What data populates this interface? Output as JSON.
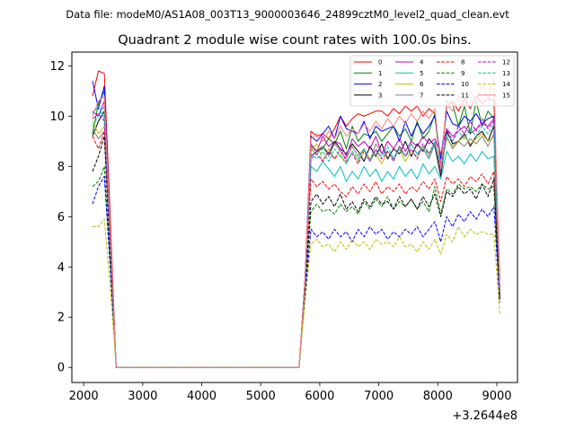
{
  "header": {
    "subtitle": "Data file: modeM0/AS1A08_003T13_9000003646_24899cztM0_level2_quad_clean.evt",
    "title": "Quadrant 2 module wise count rates with 100.0s bins."
  },
  "chart_data": {
    "type": "line",
    "title": "Quadrant 2 module wise count rates with 100.0s bins.",
    "xlabel": "",
    "ylabel": "",
    "x_offset_label": "+3.2644e8",
    "xlim": [
      1800,
      9350
    ],
    "ylim": [
      -0.6,
      12.55
    ],
    "x_ticks": [
      2000,
      3000,
      4000,
      5000,
      6000,
      7000,
      8000,
      9000
    ],
    "x_tick_labels": [
      "2000",
      "3000",
      "4000",
      "5000",
      "6000",
      "7000",
      "8000",
      "9000"
    ],
    "y_ticks": [
      0,
      2,
      4,
      6,
      8,
      10,
      12
    ],
    "y_tick_labels": [
      "0",
      "2",
      "4",
      "6",
      "8",
      "10",
      "12"
    ],
    "grid": false,
    "legend_position": "top-right",
    "x": [
      2150,
      2250,
      2350,
      2450,
      2550,
      2650,
      2750,
      2850,
      2950,
      3050,
      3150,
      3250,
      3350,
      3450,
      3550,
      3650,
      3750,
      3850,
      3950,
      4050,
      4150,
      4250,
      4350,
      4450,
      4550,
      4650,
      4750,
      4850,
      4950,
      5050,
      5150,
      5250,
      5350,
      5450,
      5550,
      5650,
      5750,
      5850,
      5950,
      6050,
      6150,
      6250,
      6350,
      6450,
      6550,
      6650,
      6750,
      6850,
      6950,
      7050,
      7150,
      7250,
      7350,
      7450,
      7550,
      7650,
      7750,
      7850,
      7950,
      8050,
      8150,
      8250,
      8350,
      8450,
      8550,
      8650,
      8750,
      8850,
      8950,
      9050
    ],
    "series": [
      {
        "name": "0",
        "color": "#ff0000",
        "dashed": false,
        "values": [
          10.8,
          11.8,
          11.7,
          6.0,
          0.0,
          0,
          0,
          0,
          0,
          0,
          0,
          0,
          0,
          0,
          0,
          0,
          0,
          0,
          0,
          0,
          0,
          0,
          0,
          0,
          0,
          0,
          0,
          0,
          0,
          0,
          0,
          0,
          0,
          0,
          0,
          0.0,
          3.5,
          9.4,
          9.2,
          9.3,
          9.1,
          9.5,
          10.0,
          9.6,
          9.9,
          10.1,
          10.0,
          10.1,
          10.2,
          10.2,
          10.0,
          10.3,
          10.1,
          10.4,
          10.2,
          10.4,
          10.0,
          10.3,
          10.1,
          8.0,
          10.4,
          10.6,
          10.2,
          10.7,
          10.3,
          10.8,
          10.5,
          10.7,
          10.6,
          3.5
        ]
      },
      {
        "name": "1",
        "color": "#008000",
        "dashed": false,
        "values": [
          9.3,
          10.5,
          11.0,
          5.5,
          0.0,
          0,
          0,
          0,
          0,
          0,
          0,
          0,
          0,
          0,
          0,
          0,
          0,
          0,
          0,
          0,
          0,
          0,
          0,
          0,
          0,
          0,
          0,
          0,
          0,
          0,
          0,
          0,
          0,
          0,
          0,
          0.0,
          3.5,
          8.8,
          8.6,
          8.7,
          9.1,
          8.9,
          9.4,
          8.7,
          9.6,
          9.0,
          9.3,
          9.2,
          9.4,
          9.0,
          9.3,
          9.6,
          9.2,
          9.5,
          9.0,
          9.8,
          9.1,
          9.4,
          10.1,
          7.8,
          10.6,
          10.5,
          9.6,
          10.4,
          9.3,
          10.6,
          9.6,
          10.2,
          9.9,
          3.2
        ]
      },
      {
        "name": "2",
        "color": "#0000ff",
        "dashed": false,
        "values": [
          11.4,
          10.3,
          11.2,
          5.4,
          0.0,
          0,
          0,
          0,
          0,
          0,
          0,
          0,
          0,
          0,
          0,
          0,
          0,
          0,
          0,
          0,
          0,
          0,
          0,
          0,
          0,
          0,
          0,
          0,
          0,
          0,
          0,
          0,
          0,
          0,
          0,
          0.0,
          3.5,
          9.2,
          9.0,
          9.3,
          9.6,
          9.1,
          10.0,
          9.5,
          9.4,
          9.3,
          9.8,
          9.1,
          9.6,
          9.4,
          9.5,
          9.6,
          9.0,
          9.8,
          9.2,
          9.7,
          9.3,
          9.6,
          10.0,
          8.3,
          10.2,
          9.7,
          9.6,
          10.0,
          9.8,
          10.1,
          9.7,
          9.9,
          10.0,
          3.0
        ]
      },
      {
        "name": "3",
        "color": "#000000",
        "dashed": false,
        "values": [
          9.2,
          9.8,
          10.2,
          5.0,
          0.0,
          0,
          0,
          0,
          0,
          0,
          0,
          0,
          0,
          0,
          0,
          0,
          0,
          0,
          0,
          0,
          0,
          0,
          0,
          0,
          0,
          0,
          0,
          0,
          0,
          0,
          0,
          0,
          0,
          0,
          0,
          0.0,
          3.4,
          8.4,
          8.6,
          8.8,
          8.5,
          9.0,
          8.7,
          8.5,
          8.9,
          8.6,
          8.2,
          8.8,
          8.4,
          8.9,
          8.3,
          8.7,
          8.5,
          9.0,
          8.4,
          8.9,
          8.6,
          9.1,
          8.8,
          7.6,
          9.4,
          8.9,
          9.0,
          9.3,
          8.8,
          9.2,
          9.4,
          9.0,
          9.6,
          3.0
        ]
      },
      {
        "name": "4",
        "color": "#bf00bf",
        "dashed": false,
        "values": [
          10.2,
          10.0,
          10.6,
          5.2,
          0.0,
          0,
          0,
          0,
          0,
          0,
          0,
          0,
          0,
          0,
          0,
          0,
          0,
          0,
          0,
          0,
          0,
          0,
          0,
          0,
          0,
          0,
          0,
          0,
          0,
          0,
          0,
          0,
          0,
          0,
          0,
          0.0,
          3.4,
          8.9,
          8.6,
          9.2,
          8.8,
          9.0,
          8.9,
          8.4,
          9.1,
          8.8,
          9.0,
          8.7,
          9.2,
          8.5,
          9.0,
          8.7,
          9.1,
          8.6,
          9.0,
          8.8,
          9.2,
          8.9,
          9.1,
          8.5,
          9.5,
          9.2,
          9.4,
          9.6,
          9.3,
          9.5,
          9.7,
          9.6,
          9.9,
          3.0
        ]
      },
      {
        "name": "5",
        "color": "#00bfbf",
        "dashed": false,
        "values": [
          10.1,
          10.4,
          9.9,
          5.1,
          0.0,
          0,
          0,
          0,
          0,
          0,
          0,
          0,
          0,
          0,
          0,
          0,
          0,
          0,
          0,
          0,
          0,
          0,
          0,
          0,
          0,
          0,
          0,
          0,
          0,
          0,
          0,
          0,
          0,
          0,
          0,
          0.0,
          3.3,
          8.0,
          7.8,
          8.2,
          7.9,
          7.6,
          8.0,
          7.4,
          7.8,
          7.5,
          8.0,
          7.6,
          7.9,
          7.4,
          7.8,
          7.5,
          8.0,
          7.6,
          7.9,
          7.5,
          8.1,
          7.7,
          8.0,
          7.5,
          8.6,
          8.2,
          8.4,
          8.1,
          8.5,
          8.2,
          8.6,
          8.3,
          8.4,
          3.0
        ]
      },
      {
        "name": "6",
        "color": "#bfbf00",
        "dashed": false,
        "values": [
          9.8,
          9.3,
          9.6,
          4.8,
          0.0,
          0,
          0,
          0,
          0,
          0,
          0,
          0,
          0,
          0,
          0,
          0,
          0,
          0,
          0,
          0,
          0,
          0,
          0,
          0,
          0,
          0,
          0,
          0,
          0,
          0,
          0,
          0,
          0,
          0,
          0,
          0.0,
          3.3,
          8.6,
          8.9,
          8.2,
          8.7,
          8.3,
          8.5,
          8.1,
          8.6,
          8.2,
          8.7,
          8.3,
          8.5,
          8.1,
          8.6,
          8.3,
          8.7,
          8.2,
          8.6,
          8.4,
          8.8,
          8.5,
          8.9,
          7.9,
          9.1,
          8.8,
          9.0,
          9.2,
          8.9,
          9.1,
          9.3,
          9.0,
          9.2,
          2.9
        ]
      },
      {
        "name": "7",
        "color": "#808080",
        "dashed": false,
        "values": [
          9.5,
          9.1,
          9.4,
          4.9,
          0.0,
          0,
          0,
          0,
          0,
          0,
          0,
          0,
          0,
          0,
          0,
          0,
          0,
          0,
          0,
          0,
          0,
          0,
          0,
          0,
          0,
          0,
          0,
          0,
          0,
          0,
          0,
          0,
          0,
          0,
          0,
          0.0,
          3.3,
          8.7,
          8.5,
          8.8,
          8.4,
          8.9,
          8.6,
          8.3,
          8.8,
          8.4,
          8.7,
          8.2,
          8.9,
          8.5,
          8.6,
          8.3,
          8.8,
          8.4,
          8.9,
          8.5,
          8.7,
          8.3,
          8.9,
          7.8,
          9.2,
          8.7,
          9.0,
          8.8,
          9.1,
          8.9,
          9.2,
          8.8,
          9.3,
          2.9
        ]
      },
      {
        "name": "8",
        "color": "#ff0000",
        "dashed": true,
        "values": [
          9.2,
          8.7,
          9.4,
          4.6,
          0.0,
          0,
          0,
          0,
          0,
          0,
          0,
          0,
          0,
          0,
          0,
          0,
          0,
          0,
          0,
          0,
          0,
          0,
          0,
          0,
          0,
          0,
          0,
          0,
          0,
          0,
          0,
          0,
          0,
          0,
          0,
          0.0,
          3.1,
          7.5,
          7.2,
          7.4,
          7.1,
          7.3,
          7.0,
          6.8,
          7.2,
          6.9,
          7.3,
          7.0,
          7.4,
          6.9,
          7.2,
          7.0,
          7.3,
          6.9,
          7.2,
          7.0,
          7.4,
          7.1,
          7.5,
          6.6,
          7.6,
          7.3,
          7.5,
          7.2,
          7.6,
          7.4,
          7.7,
          7.3,
          7.8,
          2.8
        ]
      },
      {
        "name": "9",
        "color": "#008000",
        "dashed": true,
        "values": [
          7.2,
          7.4,
          8.0,
          4.2,
          0.0,
          0,
          0,
          0,
          0,
          0,
          0,
          0,
          0,
          0,
          0,
          0,
          0,
          0,
          0,
          0,
          0,
          0,
          0,
          0,
          0,
          0,
          0,
          0,
          0,
          0,
          0,
          0,
          0,
          0,
          0,
          0.0,
          3.0,
          6.2,
          6.5,
          6.2,
          6.3,
          6.1,
          6.5,
          6.2,
          6.4,
          6.1,
          6.6,
          6.3,
          6.7,
          6.4,
          6.8,
          6.3,
          6.6,
          6.4,
          6.7,
          6.3,
          6.6,
          6.2,
          7.2,
          6.1,
          7.1,
          6.9,
          7.3,
          7.1,
          7.2,
          7.0,
          7.3,
          7.1,
          7.2,
          2.8
        ]
      },
      {
        "name": "10",
        "color": "#0000ff",
        "dashed": true,
        "values": [
          6.5,
          7.2,
          7.6,
          4.0,
          0.0,
          0,
          0,
          0,
          0,
          0,
          0,
          0,
          0,
          0,
          0,
          0,
          0,
          0,
          0,
          0,
          0,
          0,
          0,
          0,
          0,
          0,
          0,
          0,
          0,
          0,
          0,
          0,
          0,
          0,
          0,
          0.0,
          2.9,
          5.5,
          5.2,
          5.4,
          5.1,
          5.5,
          5.2,
          5.4,
          5.0,
          5.5,
          5.2,
          5.6,
          5.3,
          5.5,
          5.1,
          5.4,
          5.2,
          5.5,
          5.3,
          5.6,
          5.2,
          5.5,
          5.8,
          5.0,
          6.0,
          5.6,
          6.1,
          5.8,
          6.2,
          5.9,
          6.3,
          6.0,
          6.4,
          2.6
        ]
      },
      {
        "name": "11",
        "color": "#000000",
        "dashed": true,
        "values": [
          7.8,
          8.4,
          9.2,
          4.5,
          0.0,
          0,
          0,
          0,
          0,
          0,
          0,
          0,
          0,
          0,
          0,
          0,
          0,
          0,
          0,
          0,
          0,
          0,
          0,
          0,
          0,
          0,
          0,
          0,
          0,
          0,
          0,
          0,
          0,
          0,
          0,
          0.0,
          3.1,
          6.6,
          6.9,
          6.5,
          6.8,
          6.4,
          6.9,
          6.3,
          6.6,
          6.2,
          6.7,
          6.4,
          6.8,
          6.5,
          6.6,
          6.3,
          6.8,
          6.4,
          6.7,
          6.3,
          6.8,
          6.4,
          6.9,
          6.0,
          7.0,
          6.8,
          7.2,
          6.9,
          7.1,
          6.7,
          7.3,
          6.8,
          7.5,
          2.7
        ]
      },
      {
        "name": "12",
        "color": "#bf00bf",
        "dashed": true,
        "values": [
          9.9,
          10.1,
          9.8,
          5.0,
          0.0,
          0,
          0,
          0,
          0,
          0,
          0,
          0,
          0,
          0,
          0,
          0,
          0,
          0,
          0,
          0,
          0,
          0,
          0,
          0,
          0,
          0,
          0,
          0,
          0,
          0,
          0,
          0,
          0,
          0,
          0,
          0.0,
          3.3,
          8.3,
          8.5,
          8.2,
          8.6,
          8.3,
          8.7,
          8.2,
          8.5,
          8.1,
          8.6,
          8.2,
          8.7,
          8.3,
          8.6,
          8.2,
          8.8,
          8.4,
          8.7,
          8.3,
          8.9,
          8.5,
          9.0,
          7.8,
          9.5,
          9.0,
          9.6,
          9.3,
          9.8,
          9.4,
          9.9,
          9.5,
          9.8,
          3.0
        ]
      },
      {
        "name": "13",
        "color": "#00bfbf",
        "dashed": true,
        "values": [
          9.6,
          10.0,
          10.4,
          5.1,
          0.0,
          0,
          0,
          0,
          0,
          0,
          0,
          0,
          0,
          0,
          0,
          0,
          0,
          0,
          0,
          0,
          0,
          0,
          0,
          0,
          0,
          0,
          0,
          0,
          0,
          0,
          0,
          0,
          0,
          0,
          0,
          0.0,
          3.3,
          8.5,
          8.3,
          8.6,
          8.2,
          8.7,
          8.4,
          8.1,
          8.6,
          8.3,
          8.7,
          8.2,
          8.6,
          8.4,
          8.8,
          8.3,
          8.7,
          8.4,
          8.9,
          8.5,
          8.8,
          8.4,
          9.0,
          7.9,
          9.3,
          9.0,
          9.4,
          9.1,
          9.5,
          9.2,
          9.6,
          9.3,
          9.7,
          3.0
        ]
      },
      {
        "name": "14",
        "color": "#bfbf00",
        "dashed": true,
        "values": [
          5.6,
          5.6,
          5.9,
          3.2,
          0.0,
          0,
          0,
          0,
          0,
          0,
          0,
          0,
          0,
          0,
          0,
          0,
          0,
          0,
          0,
          0,
          0,
          0,
          0,
          0,
          0,
          0,
          0,
          0,
          0,
          0,
          0,
          0,
          0,
          0,
          0,
          0.0,
          2.6,
          4.9,
          5.1,
          4.8,
          4.9,
          4.6,
          5.0,
          4.7,
          5.1,
          4.8,
          5.0,
          4.7,
          5.1,
          4.9,
          5.0,
          4.8,
          5.2,
          4.8,
          4.9,
          4.6,
          5.0,
          4.7,
          5.1,
          4.5,
          5.3,
          5.0,
          5.6,
          5.2,
          5.5,
          5.3,
          5.4,
          5.3,
          5.3,
          2.1
        ]
      },
      {
        "name": "15",
        "color": "#ff7f7f",
        "dashed": false,
        "values": [
          10.0,
          10.6,
          10.8,
          5.4,
          0.0,
          0,
          0,
          0,
          0,
          0,
          0,
          0,
          0,
          0,
          0,
          0,
          0,
          0,
          0,
          0,
          0,
          0,
          0,
          0,
          0,
          0,
          0,
          0,
          0,
          0,
          0,
          0,
          0,
          0,
          0,
          0.0,
          3.4,
          9.1,
          9.3,
          9.0,
          9.4,
          9.1,
          9.6,
          9.2,
          9.5,
          9.3,
          9.7,
          9.4,
          9.8,
          9.5,
          9.9,
          9.6,
          10.0,
          9.7,
          10.1,
          9.8,
          10.2,
          9.9,
          10.3,
          7.9,
          10.5,
          10.2,
          10.8,
          10.4,
          11.0,
          10.6,
          11.2,
          10.8,
          11.5,
          3.1
        ]
      }
    ]
  }
}
